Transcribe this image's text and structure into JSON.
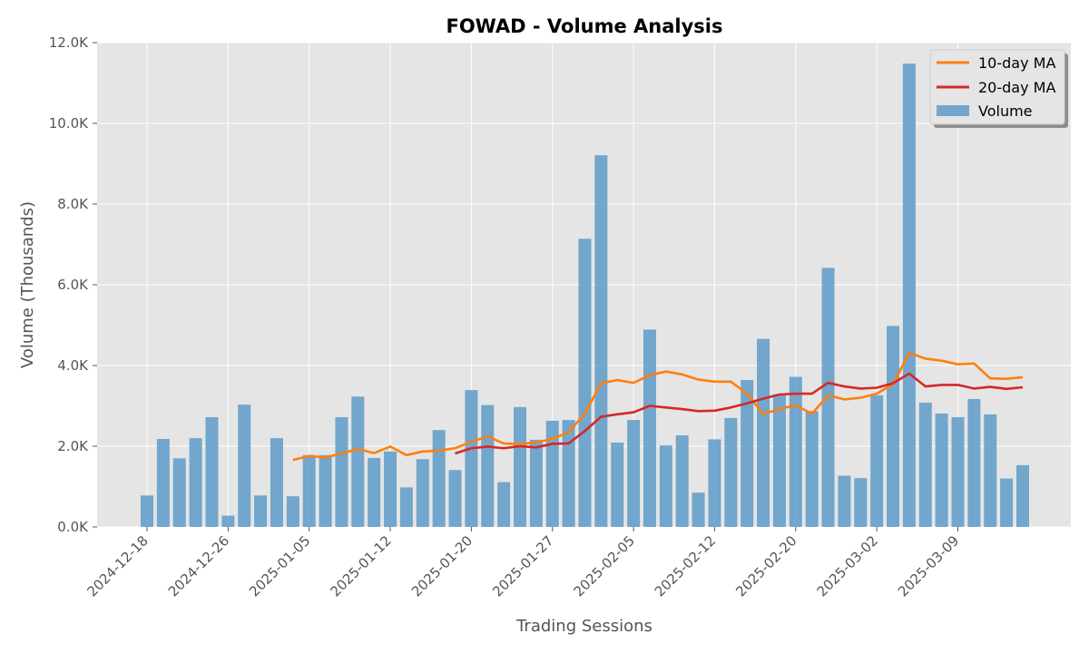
{
  "chart_data": {
    "type": "bar",
    "title": "FOWAD - Volume Analysis",
    "xlabel": "Trading Sessions",
    "ylabel": "Volume (Thousands)",
    "ylim": [
      0,
      12000
    ],
    "yticks": [
      0,
      2000,
      4000,
      6000,
      8000,
      10000,
      12000
    ],
    "ytick_labels": [
      "0.0K",
      "2.0K",
      "4.0K",
      "6.0K",
      "8.0K",
      "10.0K",
      "12.0K"
    ],
    "xtick_labels": [
      {
        "label": "2024-12-18",
        "index": 0
      },
      {
        "label": "2024-12-26",
        "index": 5
      },
      {
        "label": "2025-01-05",
        "index": 10
      },
      {
        "label": "2025-01-12",
        "index": 15
      },
      {
        "label": "2025-01-20",
        "index": 20
      },
      {
        "label": "2025-01-27",
        "index": 25
      },
      {
        "label": "2025-02-05",
        "index": 30
      },
      {
        "label": "2025-02-12",
        "index": 35
      },
      {
        "label": "2025-02-20",
        "index": 40
      },
      {
        "label": "2025-03-02",
        "index": 45
      },
      {
        "label": "2025-03-09",
        "index": 50
      }
    ],
    "grid": true,
    "legend_position": "top-right",
    "series": [
      {
        "name": "Volume",
        "type": "bar",
        "color": "#5e9bc8",
        "values": [
          780,
          2180,
          1700,
          2200,
          2720,
          280,
          3030,
          780,
          2200,
          760,
          1780,
          1780,
          2720,
          3230,
          1710,
          1870,
          980,
          1680,
          2400,
          1410,
          3390,
          3020,
          1110,
          2970,
          2160,
          2630,
          2650,
          7140,
          9210,
          2090,
          2650,
          4890,
          2020,
          2270,
          850,
          2170,
          2700,
          3640,
          4660,
          3290,
          3720,
          2870,
          6420,
          1270,
          1210,
          3260,
          4980,
          11480,
          3080,
          2810,
          2720,
          3170,
          2790,
          1200,
          1530
        ]
      },
      {
        "name": "10-day MA",
        "type": "line",
        "color": "#ff7f0e",
        "values": [
          null,
          null,
          null,
          null,
          null,
          null,
          null,
          null,
          null,
          1660,
          1760,
          1720,
          1820,
          1930,
          1830,
          1990,
          1780,
          1870,
          1890,
          1950,
          2110,
          2240,
          2070,
          2050,
          2100,
          2180,
          2350,
          2810,
          3560,
          3640,
          3570,
          3760,
          3850,
          3780,
          3650,
          3600,
          3600,
          3300,
          2800,
          2920,
          3020,
          2800,
          3260,
          3160,
          3200,
          3300,
          3540,
          4310,
          4170,
          4120,
          4030,
          4050,
          3680,
          3670,
          3710
        ]
      },
      {
        "name": "20-day MA",
        "type": "line",
        "color": "#d62728",
        "values": [
          null,
          null,
          null,
          null,
          null,
          null,
          null,
          null,
          null,
          null,
          null,
          null,
          null,
          null,
          null,
          null,
          null,
          null,
          null,
          1820,
          1950,
          1990,
          1950,
          2000,
          1970,
          2060,
          2070,
          2380,
          2730,
          2790,
          2840,
          3000,
          2960,
          2920,
          2870,
          2880,
          2960,
          3060,
          3180,
          3280,
          3300,
          3300,
          3570,
          3480,
          3430,
          3450,
          3560,
          3800,
          3480,
          3520,
          3520,
          3430,
          3470,
          3420,
          3460
        ]
      }
    ]
  }
}
